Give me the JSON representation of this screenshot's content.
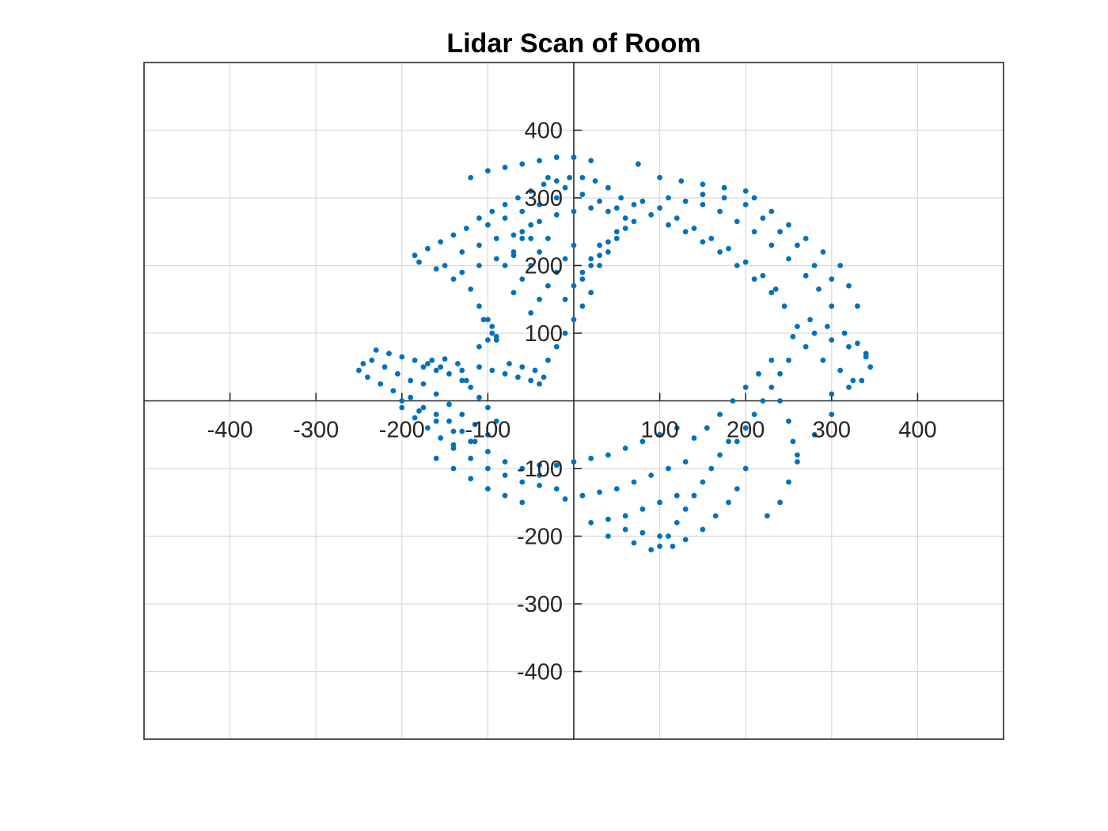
{
  "chart_data": {
    "type": "scatter",
    "title": "Lidar Scan of Room",
    "xlabel": "",
    "ylabel": "",
    "xlim": [
      -500,
      500
    ],
    "ylim": [
      -500,
      500
    ],
    "xticks": [
      -400,
      -300,
      -200,
      -100,
      100,
      200,
      300,
      400
    ],
    "yticks": [
      -400,
      -300,
      -200,
      -100,
      100,
      200,
      300,
      400
    ],
    "grid": true,
    "axis_location": "origin",
    "marker_color": "#0072BD",
    "series": [
      {
        "points": [
          [
            -185,
            215
          ],
          [
            -170,
            225
          ],
          [
            -155,
            235
          ],
          [
            -140,
            245
          ],
          [
            -125,
            255
          ],
          [
            -110,
            270
          ],
          [
            -95,
            280
          ],
          [
            -80,
            290
          ],
          [
            -65,
            300
          ],
          [
            -50,
            310
          ],
          [
            -35,
            320
          ],
          [
            -20,
            325
          ],
          [
            -5,
            330
          ],
          [
            10,
            330
          ],
          [
            25,
            325
          ],
          [
            40,
            315
          ],
          [
            55,
            300
          ],
          [
            70,
            290
          ],
          [
            -180,
            205
          ],
          [
            -160,
            195
          ],
          [
            -140,
            180
          ],
          [
            -120,
            165
          ],
          [
            -110,
            140
          ],
          [
            -100,
            120
          ],
          [
            -95,
            100
          ],
          [
            -90,
            90
          ],
          [
            -60,
            250
          ],
          [
            -40,
            265
          ],
          [
            -20,
            275
          ],
          [
            0,
            280
          ],
          [
            20,
            285
          ],
          [
            40,
            280
          ],
          [
            60,
            270
          ],
          [
            -130,
            220
          ],
          [
            -110,
            230
          ],
          [
            -90,
            240
          ],
          [
            -70,
            245
          ],
          [
            -50,
            240
          ],
          [
            -100,
            260
          ],
          [
            -80,
            270
          ],
          [
            -60,
            280
          ],
          [
            -40,
            290
          ],
          [
            -20,
            300
          ],
          [
            -150,
            200
          ],
          [
            -130,
            190
          ],
          [
            -110,
            200
          ],
          [
            -90,
            210
          ],
          [
            -70,
            215
          ],
          [
            -120,
            330
          ],
          [
            -100,
            340
          ],
          [
            -80,
            345
          ],
          [
            -60,
            350
          ],
          [
            -40,
            355
          ],
          [
            -20,
            360
          ],
          [
            0,
            360
          ],
          [
            20,
            355
          ],
          [
            75,
            350
          ],
          [
            100,
            330
          ],
          [
            125,
            325
          ],
          [
            150,
            320
          ],
          [
            175,
            315
          ],
          [
            200,
            310
          ],
          [
            80,
            295
          ],
          [
            100,
            285
          ],
          [
            120,
            270
          ],
          [
            140,
            255
          ],
          [
            160,
            240
          ],
          [
            180,
            225
          ],
          [
            200,
            205
          ],
          [
            220,
            185
          ],
          [
            235,
            165
          ],
          [
            245,
            140
          ],
          [
            90,
            275
          ],
          [
            110,
            260
          ],
          [
            130,
            250
          ],
          [
            150,
            235
          ],
          [
            170,
            220
          ],
          [
            190,
            200
          ],
          [
            210,
            180
          ],
          [
            230,
            160
          ],
          [
            110,
            300
          ],
          [
            130,
            295
          ],
          [
            150,
            290
          ],
          [
            170,
            280
          ],
          [
            190,
            265
          ],
          [
            210,
            250
          ],
          [
            230,
            230
          ],
          [
            250,
            210
          ],
          [
            270,
            185
          ],
          [
            285,
            165
          ],
          [
            300,
            140
          ],
          [
            210,
            300
          ],
          [
            230,
            280
          ],
          [
            250,
            260
          ],
          [
            270,
            240
          ],
          [
            290,
            220
          ],
          [
            310,
            200
          ],
          [
            320,
            170
          ],
          [
            330,
            140
          ],
          [
            150,
            305
          ],
          [
            175,
            300
          ],
          [
            200,
            290
          ],
          [
            220,
            270
          ],
          [
            240,
            250
          ],
          [
            260,
            230
          ],
          [
            280,
            200
          ],
          [
            300,
            180
          ],
          [
            260,
            110
          ],
          [
            280,
            100
          ],
          [
            300,
            90
          ],
          [
            320,
            80
          ],
          [
            340,
            65
          ],
          [
            345,
            50
          ],
          [
            335,
            30
          ],
          [
            320,
            20
          ],
          [
            300,
            10
          ],
          [
            255,
            95
          ],
          [
            270,
            80
          ],
          [
            290,
            60
          ],
          [
            310,
            45
          ],
          [
            325,
            30
          ],
          [
            300,
            -20
          ],
          [
            280,
            -50
          ],
          [
            260,
            -80
          ],
          [
            275,
            120
          ],
          [
            295,
            110
          ],
          [
            315,
            100
          ],
          [
            330,
            85
          ],
          [
            340,
            70
          ],
          [
            250,
            60
          ],
          [
            240,
            40
          ],
          [
            230,
            20
          ],
          [
            220,
            0
          ],
          [
            210,
            -20
          ],
          [
            200,
            -40
          ],
          [
            190,
            -60
          ],
          [
            240,
            0
          ],
          [
            250,
            -30
          ],
          [
            255,
            -60
          ],
          [
            260,
            -90
          ],
          [
            250,
            -120
          ],
          [
            240,
            -150
          ],
          [
            225,
            -170
          ],
          [
            180,
            -60
          ],
          [
            170,
            -80
          ],
          [
            160,
            -100
          ],
          [
            150,
            -120
          ],
          [
            140,
            -140
          ],
          [
            130,
            -160
          ],
          [
            120,
            -180
          ],
          [
            110,
            -200
          ],
          [
            100,
            -215
          ],
          [
            90,
            -220
          ],
          [
            200,
            -100
          ],
          [
            190,
            -130
          ],
          [
            180,
            -150
          ],
          [
            165,
            -170
          ],
          [
            150,
            -190
          ],
          [
            130,
            -205
          ],
          [
            115,
            -215
          ],
          [
            230,
            60
          ],
          [
            215,
            40
          ],
          [
            200,
            20
          ],
          [
            185,
            0
          ],
          [
            170,
            -20
          ],
          [
            155,
            -40
          ],
          [
            140,
            -55
          ],
          [
            120,
            -40
          ],
          [
            100,
            -50
          ],
          [
            80,
            -60
          ],
          [
            60,
            -70
          ],
          [
            40,
            -80
          ],
          [
            20,
            -85
          ],
          [
            0,
            -90
          ],
          [
            -20,
            -95
          ],
          [
            -40,
            -95
          ],
          [
            130,
            -90
          ],
          [
            110,
            -100
          ],
          [
            90,
            -110
          ],
          [
            70,
            -120
          ],
          [
            50,
            -130
          ],
          [
            30,
            -135
          ],
          [
            10,
            -140
          ],
          [
            -10,
            -145
          ],
          [
            120,
            -140
          ],
          [
            100,
            -150
          ],
          [
            80,
            -160
          ],
          [
            60,
            -170
          ],
          [
            40,
            -175
          ],
          [
            20,
            -180
          ],
          [
            60,
            -190
          ],
          [
            80,
            -195
          ],
          [
            100,
            -200
          ],
          [
            70,
            -210
          ],
          [
            40,
            -200
          ],
          [
            -20,
            -130
          ],
          [
            -40,
            -125
          ],
          [
            -60,
            -120
          ],
          [
            -80,
            -110
          ],
          [
            -100,
            -100
          ],
          [
            -120,
            -85
          ],
          [
            -140,
            -70
          ],
          [
            -60,
            -150
          ],
          [
            -80,
            -140
          ],
          [
            -100,
            -130
          ],
          [
            -120,
            -115
          ],
          [
            -140,
            -100
          ],
          [
            -160,
            -85
          ],
          [
            -40,
            -110
          ],
          [
            -60,
            -100
          ],
          [
            -80,
            -90
          ],
          [
            -100,
            -75
          ],
          [
            -120,
            -60
          ],
          [
            -140,
            -45
          ],
          [
            -160,
            -30
          ],
          [
            -180,
            -15
          ],
          [
            -200,
            0
          ],
          [
            -90,
            -30
          ],
          [
            -100,
            -10
          ],
          [
            -110,
            5
          ],
          [
            -120,
            20
          ],
          [
            -130,
            30
          ],
          [
            -145,
            40
          ],
          [
            -160,
            45
          ],
          [
            -175,
            50
          ],
          [
            -100,
            -50
          ],
          [
            -115,
            -35
          ],
          [
            -130,
            -20
          ],
          [
            -145,
            -5
          ],
          [
            -160,
            10
          ],
          [
            -175,
            25
          ],
          [
            -190,
            30
          ],
          [
            -205,
            40
          ],
          [
            -220,
            50
          ],
          [
            -235,
            60
          ],
          [
            -245,
            55
          ],
          [
            -250,
            45
          ],
          [
            -240,
            35
          ],
          [
            -225,
            25
          ],
          [
            -210,
            15
          ],
          [
            -230,
            75
          ],
          [
            -215,
            70
          ],
          [
            -200,
            65
          ],
          [
            -185,
            60
          ],
          [
            -170,
            55
          ],
          [
            -155,
            50
          ],
          [
            -200,
            -10
          ],
          [
            -185,
            -25
          ],
          [
            -170,
            -40
          ],
          [
            -155,
            -55
          ],
          [
            -140,
            -65
          ],
          [
            -190,
            5
          ],
          [
            -175,
            -10
          ],
          [
            -160,
            -20
          ],
          [
            -145,
            -30
          ],
          [
            -130,
            -45
          ],
          [
            -115,
            -60
          ],
          [
            -165,
            60
          ],
          [
            -150,
            62
          ],
          [
            -135,
            55
          ],
          [
            -130,
            45
          ],
          [
            -125,
            30
          ],
          [
            -110,
            50
          ],
          [
            -95,
            45
          ],
          [
            -80,
            40
          ],
          [
            -65,
            35
          ],
          [
            -50,
            30
          ],
          [
            -40,
            25
          ],
          [
            -35,
            35
          ],
          [
            -45,
            45
          ],
          [
            -60,
            50
          ],
          [
            -75,
            55
          ],
          [
            -110,
            80
          ],
          [
            -100,
            90
          ],
          [
            -90,
            95
          ],
          [
            -95,
            110
          ],
          [
            -105,
            120
          ],
          [
            -30,
            60
          ],
          [
            -20,
            80
          ],
          [
            -10,
            100
          ],
          [
            0,
            120
          ],
          [
            10,
            140
          ],
          [
            20,
            160
          ],
          [
            -50,
            130
          ],
          [
            -40,
            150
          ],
          [
            -30,
            170
          ],
          [
            -20,
            190
          ],
          [
            -10,
            210
          ],
          [
            0,
            230
          ],
          [
            -70,
            160
          ],
          [
            -60,
            180
          ],
          [
            -50,
            200
          ],
          [
            -40,
            220
          ],
          [
            -30,
            240
          ],
          [
            -80,
            200
          ],
          [
            -70,
            220
          ],
          [
            -60,
            240
          ],
          [
            -50,
            260
          ],
          [
            30,
            200
          ],
          [
            40,
            220
          ],
          [
            50,
            240
          ],
          [
            60,
            255
          ],
          [
            70,
            265
          ],
          [
            10,
            180
          ],
          [
            20,
            200
          ],
          [
            30,
            215
          ],
          [
            40,
            235
          ],
          [
            50,
            250
          ],
          [
            -10,
            150
          ],
          [
            0,
            170
          ],
          [
            10,
            190
          ],
          [
            20,
            210
          ],
          [
            30,
            230
          ],
          [
            50,
            285
          ],
          [
            30,
            295
          ],
          [
            10,
            305
          ],
          [
            -10,
            315
          ],
          [
            -30,
            330
          ]
        ]
      }
    ]
  }
}
